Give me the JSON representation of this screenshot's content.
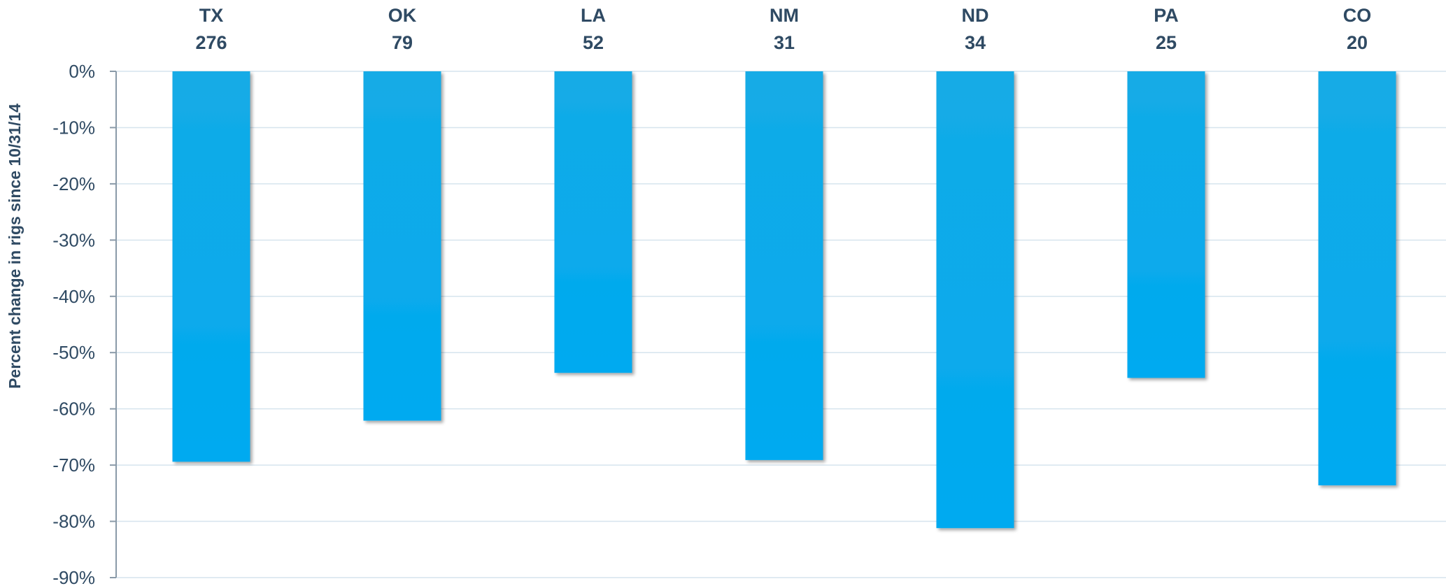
{
  "chart_data": {
    "type": "bar",
    "title": "",
    "xlabel": "",
    "ylabel": "Percent change in rigs since 10/31/14",
    "ylim": [
      -90,
      0
    ],
    "yticks": [
      "0%",
      "-10%",
      "-20%",
      "-30%",
      "-40%",
      "-50%",
      "-60%",
      "-70%",
      "-80%",
      "-90%"
    ],
    "categories": [
      "TX",
      "OK",
      "LA",
      "NM",
      "ND",
      "PA",
      "CO"
    ],
    "counts": [
      "276",
      "79",
      "52",
      "31",
      "34",
      "25",
      "20"
    ],
    "values": [
      -69.4,
      -62.1,
      -53.6,
      -69.1,
      -81.2,
      -54.5,
      -73.6
    ],
    "grid": true,
    "legend": "none",
    "colors": {
      "bar_top": "#14abe6",
      "bar_bottom": "#00aaf0",
      "axis": "#8a9aa8",
      "grid": "#d6e4ee",
      "text": "#2f4a63"
    }
  }
}
